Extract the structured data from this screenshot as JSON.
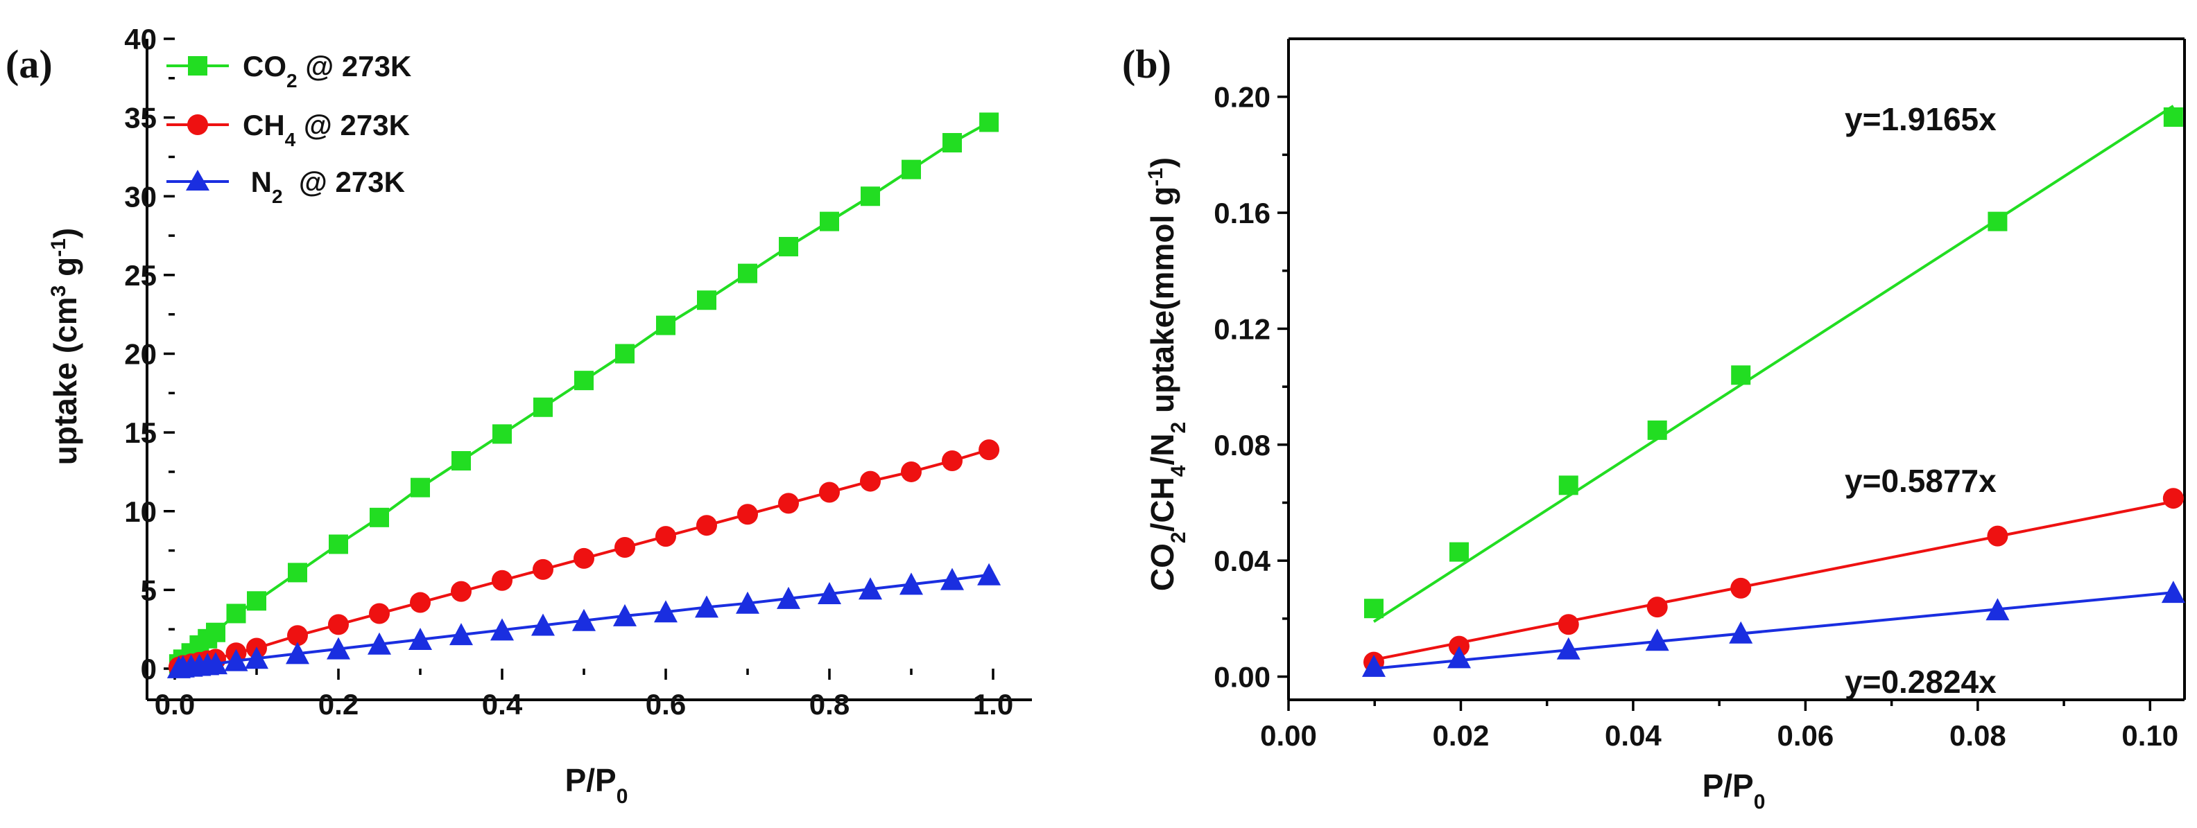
{
  "chart_data": [
    {
      "panel_label": "(a)",
      "type": "line",
      "xlabel": "P/P0",
      "xlabel_main": "P/P",
      "xlabel_sub": "0",
      "ylabel": "uptake (cm3 g-1)",
      "ylabel_parts": {
        "a": "uptake (cm",
        "sup3": "3",
        "b": " g",
        "supm1": "-1",
        "c": ")"
      },
      "xlim": [
        0,
        1.0
      ],
      "ylim": [
        0,
        40
      ],
      "xticks": [
        0.0,
        0.2,
        0.4,
        0.6,
        0.8,
        1.0
      ],
      "xtick_labels": [
        "0.0",
        "0.2",
        "0.4",
        "0.6",
        "0.8",
        "1.0"
      ],
      "yticks": [
        0,
        5,
        10,
        15,
        20,
        25,
        30,
        35,
        40
      ],
      "ytick_labels": [
        "0",
        "5",
        "10",
        "15",
        "20",
        "25",
        "30",
        "35",
        "40"
      ],
      "legend_position": "top-left",
      "series": [
        {
          "name": "CO2 @ 273K",
          "legend": {
            "pre": "CO",
            "sub": "2",
            "post": " @ 273K"
          },
          "color": "#22dd22",
          "marker": "square",
          "x": [
            0.005,
            0.01,
            0.02,
            0.03,
            0.04,
            0.05,
            0.075,
            0.1,
            0.15,
            0.2,
            0.25,
            0.3,
            0.35,
            0.4,
            0.45,
            0.5,
            0.55,
            0.6,
            0.65,
            0.7,
            0.75,
            0.8,
            0.85,
            0.9,
            0.95,
            0.995
          ],
          "y": [
            0.3,
            0.6,
            1.0,
            1.5,
            1.9,
            2.3,
            3.5,
            4.3,
            6.1,
            7.9,
            9.6,
            11.5,
            13.2,
            14.9,
            16.6,
            18.3,
            20.0,
            21.8,
            23.4,
            25.1,
            26.8,
            28.4,
            30.0,
            31.7,
            33.4,
            34.7
          ]
        },
        {
          "name": "CH4 @ 273K",
          "legend": {
            "pre": "CH",
            "sub": "4",
            "post": " @ 273K"
          },
          "color": "#ee1111",
          "marker": "circle",
          "x": [
            0.005,
            0.01,
            0.02,
            0.03,
            0.04,
            0.05,
            0.075,
            0.1,
            0.15,
            0.2,
            0.25,
            0.3,
            0.35,
            0.4,
            0.45,
            0.5,
            0.55,
            0.6,
            0.65,
            0.7,
            0.75,
            0.8,
            0.85,
            0.9,
            0.95,
            0.995
          ],
          "y": [
            0.1,
            0.2,
            0.3,
            0.4,
            0.5,
            0.6,
            1.0,
            1.3,
            2.1,
            2.8,
            3.5,
            4.2,
            4.9,
            5.6,
            6.3,
            7.0,
            7.7,
            8.4,
            9.1,
            9.8,
            10.5,
            11.2,
            11.9,
            12.5,
            13.2,
            13.9
          ]
        },
        {
          "name": "N2 @ 273K",
          "legend": {
            "pre": " N",
            "sub": "2",
            "post": "  @ 273K"
          },
          "color": "#1a2ee0",
          "marker": "triangle",
          "x": [
            0.005,
            0.01,
            0.02,
            0.03,
            0.04,
            0.05,
            0.075,
            0.1,
            0.15,
            0.2,
            0.25,
            0.3,
            0.35,
            0.4,
            0.45,
            0.5,
            0.55,
            0.6,
            0.65,
            0.7,
            0.75,
            0.8,
            0.85,
            0.9,
            0.95,
            0.995
          ],
          "y": [
            0.05,
            0.1,
            0.15,
            0.2,
            0.25,
            0.3,
            0.5,
            0.65,
            0.95,
            1.25,
            1.55,
            1.85,
            2.15,
            2.45,
            2.75,
            3.05,
            3.35,
            3.6,
            3.9,
            4.15,
            4.45,
            4.75,
            5.05,
            5.35,
            5.65,
            5.95
          ]
        }
      ]
    },
    {
      "panel_label": "(b)",
      "type": "scatter",
      "xlabel": "P/P0",
      "xlabel_main": "P/P",
      "xlabel_sub": "0",
      "ylabel": "CO2/CH4/N2 uptake(mmol g-1)",
      "ylabel_parts": {
        "a": "CO",
        "s1": "2",
        "b": "/CH",
        "s2": "4",
        "c": "/N",
        "s3": "2",
        "d": " uptake(mmol g",
        "sup": "-1",
        "e": ")"
      },
      "xlim": [
        0.0,
        0.104
      ],
      "ylim": [
        -0.008,
        0.22
      ],
      "xticks": [
        0.0,
        0.02,
        0.04,
        0.06,
        0.08,
        0.1
      ],
      "xtick_labels": [
        "0.00",
        "0.02",
        "0.04",
        "0.06",
        "0.08",
        "0.10"
      ],
      "yticks": [
        0.0,
        0.04,
        0.08,
        0.12,
        0.16,
        0.2
      ],
      "ytick_labels": [
        "0.00",
        "0.04",
        "0.08",
        "0.12",
        "0.16",
        "0.20"
      ],
      "series": [
        {
          "name": "CO2",
          "color": "#22dd22",
          "marker": "square",
          "x": [
            0.0099,
            0.0198,
            0.0325,
            0.0428,
            0.0525,
            0.0823,
            0.1027
          ],
          "y": [
            0.0235,
            0.043,
            0.066,
            0.085,
            0.104,
            0.157,
            0.193
          ],
          "fit_label": "y=1.9165x",
          "fit_slope": 1.9165
        },
        {
          "name": "CH4",
          "color": "#ee1111",
          "marker": "circle",
          "x": [
            0.0099,
            0.0198,
            0.0325,
            0.0428,
            0.0525,
            0.0823,
            0.1027
          ],
          "y": [
            0.005,
            0.0105,
            0.018,
            0.024,
            0.0305,
            0.0485,
            0.0615
          ],
          "fit_label": "y=0.5877x",
          "fit_slope": 0.5877
        },
        {
          "name": "N2",
          "color": "#1a2ee0",
          "marker": "triangle",
          "x": [
            0.0099,
            0.0198,
            0.0325,
            0.0428,
            0.0525,
            0.0823,
            0.1027
          ],
          "y": [
            0.0035,
            0.0065,
            0.0095,
            0.0125,
            0.015,
            0.023,
            0.029
          ],
          "fit_label": "y=0.2824x",
          "fit_slope": 0.2824
        }
      ]
    }
  ]
}
